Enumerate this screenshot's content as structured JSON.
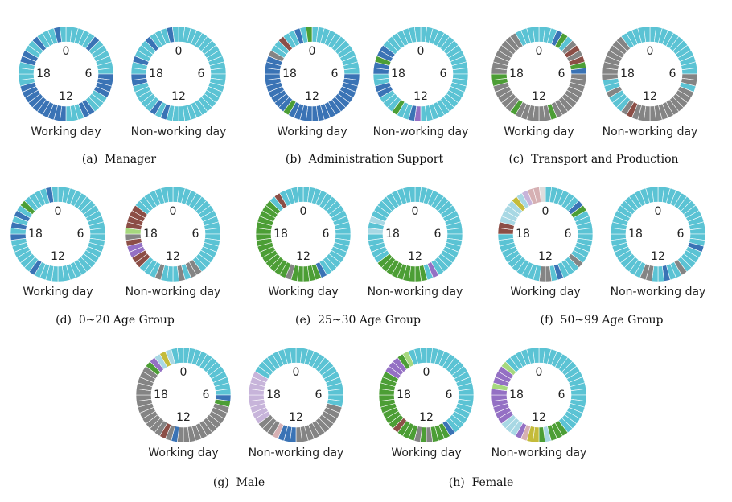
{
  "colors": {
    "C": "#5bc3d4",
    "B": "#3a73b5",
    "G": "#848484",
    "N": "#4c9e35",
    "R": "#8c4e46",
    "P": "#9470c4",
    "L": "#a8d8e4",
    "V": "#c7b4da",
    "K": "#d6b0b3",
    "Y": "#c4bb3a",
    "M": "#a6d87e",
    "E": "#dddddd"
  },
  "hour_labels": [
    "0",
    "6",
    "12",
    "18"
  ],
  "chart_data": {
    "type": "donut",
    "slots_per_day": 48,
    "panels": [
      {
        "caption": "(a)  Manager",
        "charts": [
          {
            "title": "Working day",
            "slots": "CCCCCBCCCCCCBBBBCCCBBCCCBBBBBBBBBBCCCCBBCCBCCCBC"
          },
          {
            "title": "Non-working day",
            "slots": "CCCCCCCCCCCCCCCCCCCCCCCCCCBCBCCCCCBBCCBCCCBCCCBC"
          }
        ]
      },
      {
        "caption": "(b)  Administration Support",
        "charts": [
          {
            "title": "Working day",
            "slots": "CCCCCCCCCCCCBBBBBBBBBBBBBBBBNBBBBBBBBBBGCCRCCBCN"
          },
          {
            "title": "Non-working day",
            "slots": "CCCCCCCCCCCCCCCCCCCCCCCCPBCCNCCCBBCCBBNBBCCCCCCC"
          }
        ]
      },
      {
        "caption": "(c)  Transport and Production",
        "charts": [
          {
            "title": "Working day",
            "slots": "CCCBNCGRGRNBGGGGGGGGGNGGGGGGNGGGGGNNGGGGGGGGCCCC"
          },
          {
            "title": "Non-working day",
            "slots": "CCCCCCCCCCCCGGCGGGGGGGGGGGGRGCCCGCCGGGGGGGGCCCCC"
          }
        ]
      },
      {
        "caption": "(d)  0~20 Age Group",
        "charts": [
          {
            "title": "Working day",
            "slots": "CCCCCCCCCCCCCCCCCCCCCCCCCCCCBCCCCCCBCBCBCNCCCCBC"
          },
          {
            "title": "Non-working day",
            "slots": "CCCCCCCCCCCCCCCCCCCGGCGCCCGCCCRRPPRGMRRRRCCCCCCC"
          }
        ]
      },
      {
        "caption": "(e)  25~30 Age Group",
        "charts": [
          {
            "title": "Working day",
            "slots": "CCCCCCCCCCCCCCCCCCCCBNNNNNGNNNNNNNNNNNNNNNCRCCCC"
          },
          {
            "title": "Non-working day",
            "slots": "CCCCCCCCCCCCCCCCCCCCPCNNNNNNNNNCCCCCLCLCCCCCCCCC"
          }
        ]
      },
      {
        "caption": "(f)  50~99 Age Group",
        "charts": [
          {
            "title": "Working day",
            "slots": "CCCCCCBNCCCCCCCCCGCCCBCGGCCCCCCCCCCCRRLLLLYLVKKE"
          },
          {
            "title": "Non-working day",
            "slots": "CCCCCCCCCCCCCCBCCCCGCCBCCGGCCCCCCCCCCCCCCCCCCCCC"
          }
        ]
      },
      {
        "caption": "(g)  Male",
        "charts": [
          {
            "title": "Working day",
            "slots": "CCCCCCCCCCCCBNGGGGGGGGGGGBGRGGGGGGGGGGGGGNPLYLCC"
          },
          {
            "title": "Non-working day",
            "slots": "CCCCCCCCCCCCCCGGGGGGGGGGBBBKGGGVVVVVVVVVCCCCCCCC"
          }
        ]
      },
      {
        "caption": "(h)  Female",
        "charts": [
          {
            "title": "Working day",
            "slots": "CCCCCCCCCCCCCCCCCCCBNNNGNGNNNRNNNNNNNNNNPPPNMCCC"
          },
          {
            "title": "Non-working day",
            "slots": "CCCCCCCCCCCCCCCCCCCNNNLNYYKPLLLPPPPPPMPPPMCCCCCC"
          }
        ]
      }
    ]
  }
}
